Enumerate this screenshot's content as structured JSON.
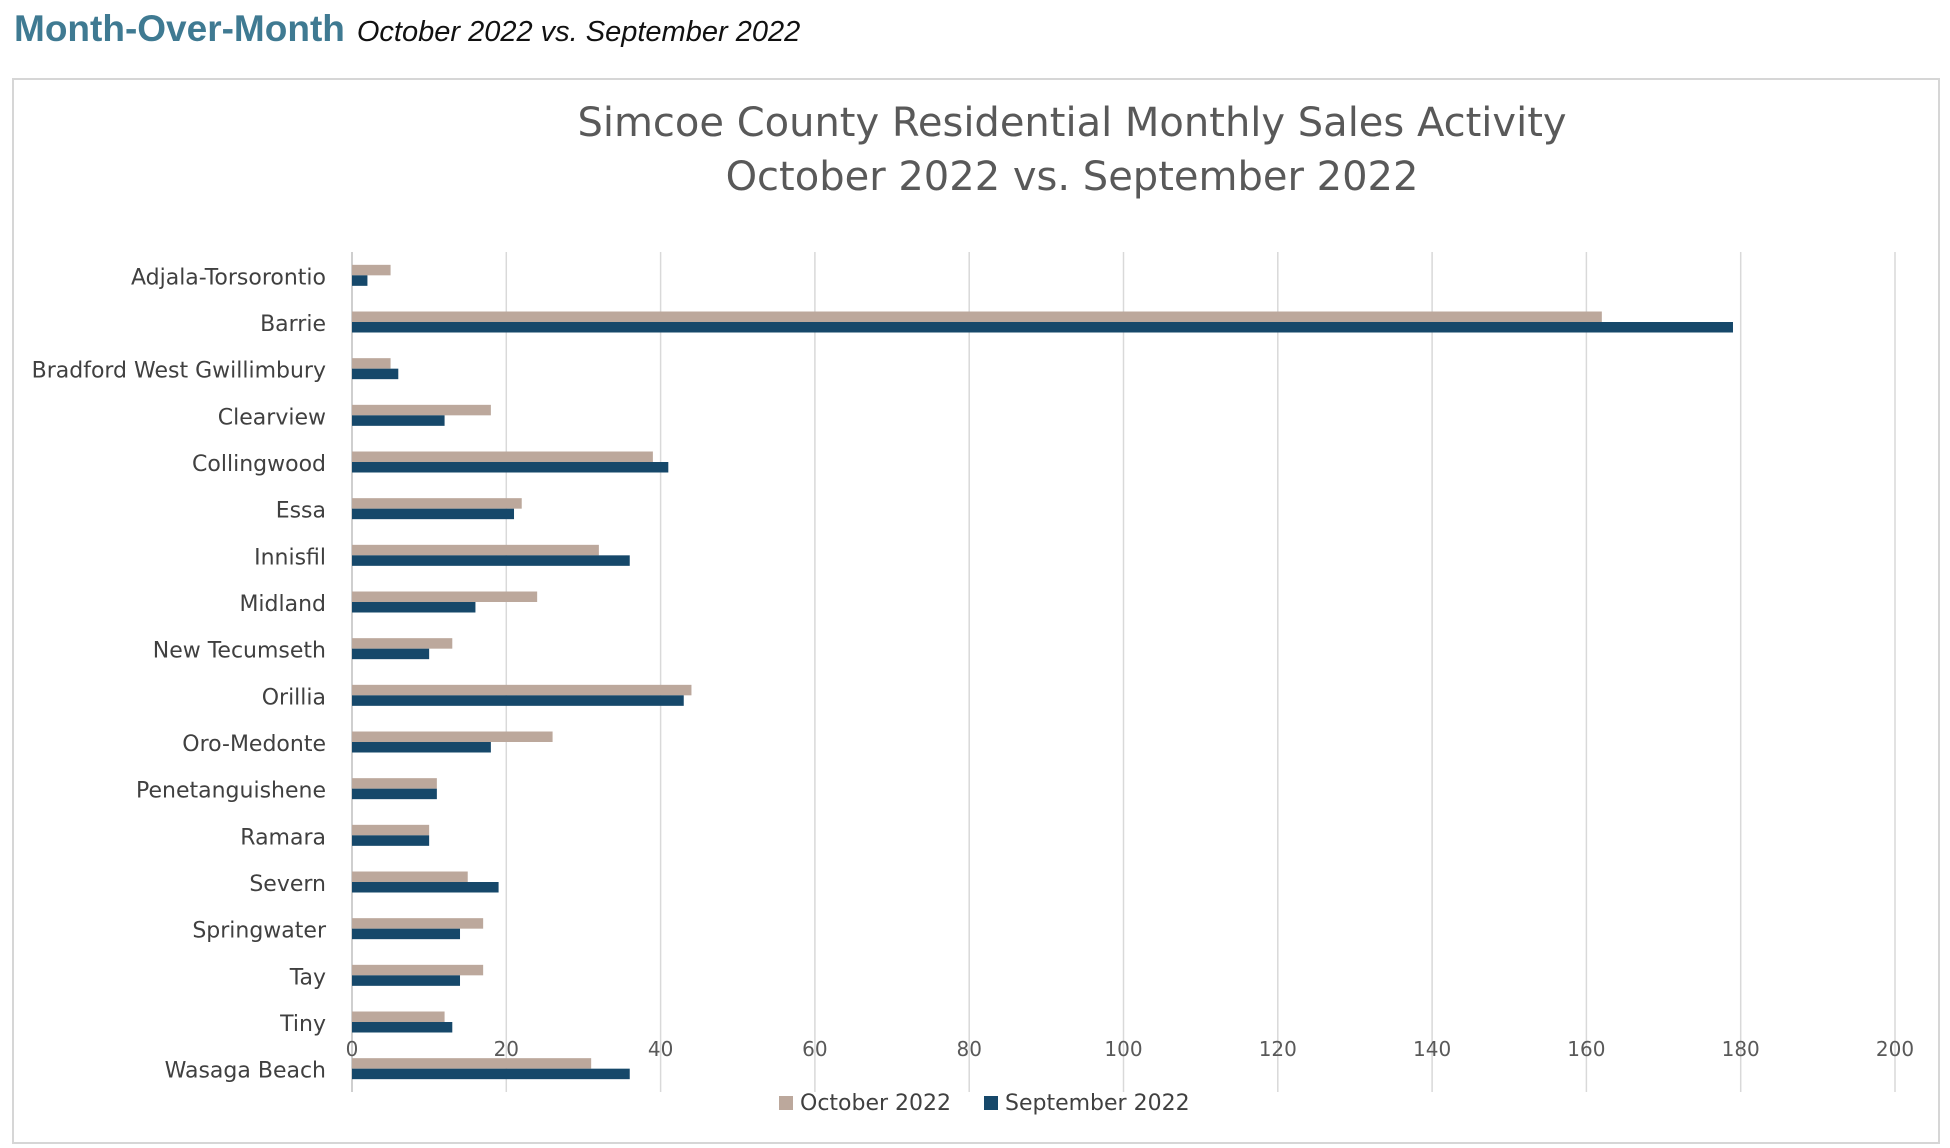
{
  "header": {
    "title": "Month-Over-Month",
    "subtitle": "October 2022 vs. September 2022"
  },
  "colors": {
    "october": "#bca89c",
    "september": "#16486a",
    "title_text": "#595959",
    "header_accent": "#3f7a92",
    "gridline": "#d9d9d9"
  },
  "chart_data": {
    "type": "bar",
    "orientation": "horizontal",
    "title_line1": "Simcoe County Residential Monthly Sales Activity",
    "title_line2": "October 2022 vs. September 2022",
    "xlabel": "",
    "ylabel": "",
    "xlim": [
      0,
      200
    ],
    "xticks": [
      0,
      20,
      40,
      60,
      80,
      100,
      120,
      140,
      160,
      180,
      200
    ],
    "grid": true,
    "legend_position": "bottom",
    "categories": [
      "Adjala-Torsorontio",
      "Barrie",
      "Bradford West Gwillimbury",
      "Clearview",
      "Collingwood",
      "Essa",
      "Innisfil",
      "Midland",
      "New Tecumseth",
      "Orillia",
      "Oro-Medonte",
      "Penetanguishene",
      "Ramara",
      "Severn",
      "Springwater",
      "Tay",
      "Tiny",
      "Wasaga Beach"
    ],
    "series": [
      {
        "name": "October 2022",
        "color": "#bca89c",
        "values": [
          5,
          162,
          5,
          18,
          39,
          22,
          32,
          24,
          13,
          44,
          26,
          11,
          10,
          15,
          17,
          17,
          12,
          31
        ]
      },
      {
        "name": "September 2022",
        "color": "#16486a",
        "values": [
          2,
          179,
          6,
          12,
          41,
          21,
          36,
          16,
          10,
          43,
          18,
          11,
          10,
          19,
          14,
          14,
          13,
          36
        ]
      }
    ]
  }
}
